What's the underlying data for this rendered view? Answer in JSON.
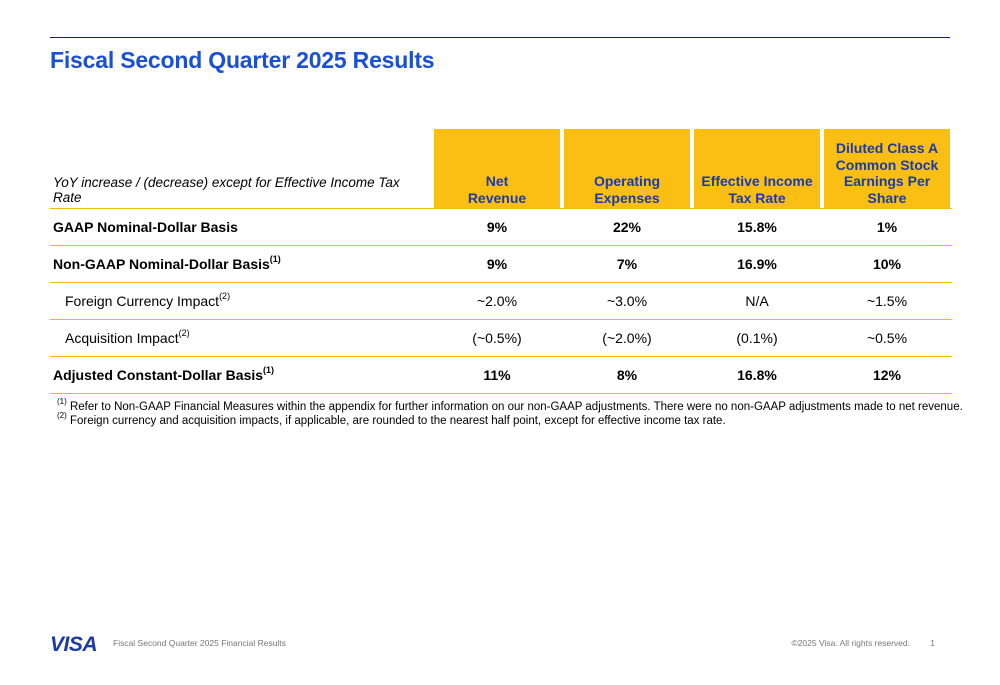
{
  "title": "Fiscal Second Quarter 2025 Results",
  "table": {
    "caption": "YoY increase / (decrease) except for Effective Income Tax Rate",
    "headers": [
      [
        "Net",
        "Revenue"
      ],
      [
        "Operating",
        "Expenses"
      ],
      [
        "Effective Income",
        "Tax Rate"
      ],
      [
        "Diluted Class A",
        "Common Stock",
        "Earnings Per Share"
      ]
    ],
    "rows": [
      {
        "label": "GAAP Nominal-Dollar Basis",
        "sup": "",
        "values": [
          "9%",
          "22%",
          "15.8%",
          "1%"
        ]
      },
      {
        "label": "Non-GAAP Nominal-Dollar Basis",
        "sup": "(1)",
        "values": [
          "9%",
          "7%",
          "16.9%",
          "10%"
        ]
      },
      {
        "label": "Foreign Currency Impact",
        "sup": "(2)",
        "values": [
          "~2.0%",
          "~3.0%",
          "N/A",
          "~1.5%"
        ]
      },
      {
        "label": "Acquisition Impact",
        "sup": "(2)",
        "values": [
          "(~0.5%)",
          "(~2.0%)",
          "(0.1%)",
          "~0.5%"
        ]
      },
      {
        "label": "Adjusted Constant-Dollar Basis",
        "sup": "(1)",
        "values": [
          "11%",
          "8%",
          "16.8%",
          "12%"
        ]
      }
    ]
  },
  "footnotes": [
    {
      "marker": "(1)",
      "text": "Refer to Non-GAAP Financial Measures within the appendix for further information on our non-GAAP adjustments. There were no non-GAAP adjustments made to net revenue."
    },
    {
      "marker": "(2)",
      "text": "Foreign currency and acquisition impacts, if applicable, are rounded to the nearest half point, except for effective income tax rate."
    }
  ],
  "footer": {
    "logo": "VISA",
    "doc_title": "Fiscal Second Quarter 2025 Financial Results",
    "copyright": "©2025 Visa. All rights reserved.",
    "page": "1"
  },
  "colors": {
    "title": "#1a4fd6",
    "header_fill": "#fbbf14",
    "header_text": "#1a3aa8",
    "rule": "#fab90a"
  }
}
